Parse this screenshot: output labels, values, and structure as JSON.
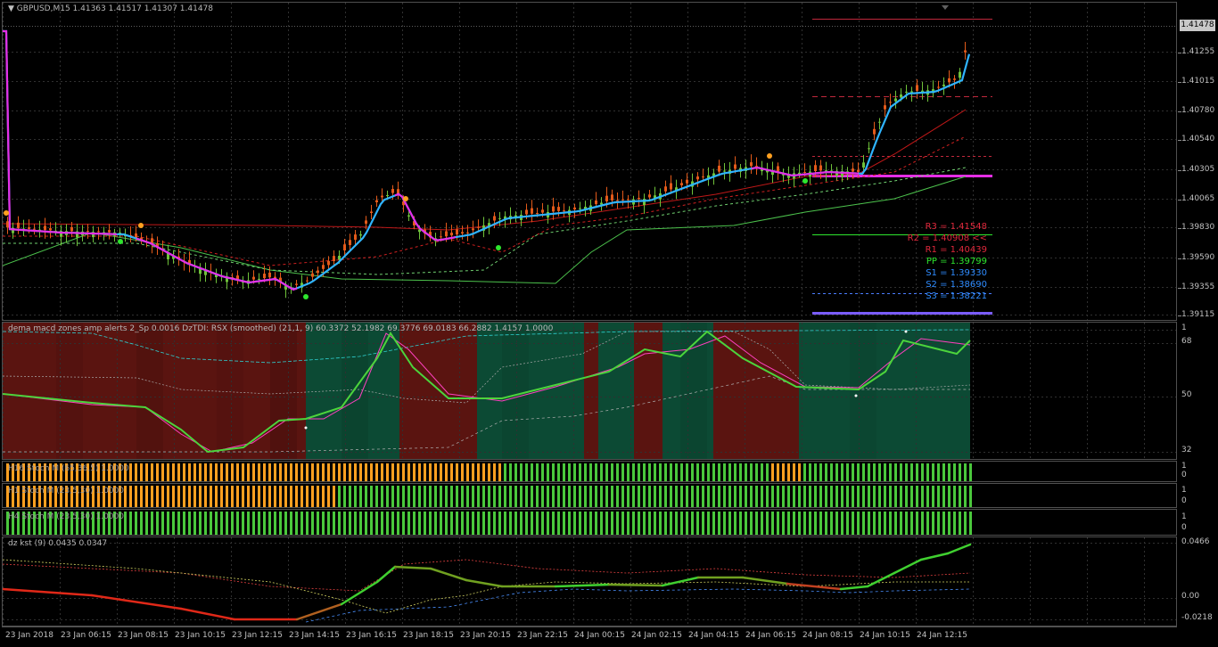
{
  "main": {
    "symbol_title": "GBPUSD,M15  1.41363 1.41517 1.41307 1.41478",
    "current_price": "1.41478",
    "y_labels": [
      "1.41255",
      "1.41015",
      "1.40780",
      "1.40540",
      "1.40305",
      "1.40065",
      "1.39830",
      "1.39590",
      "1.39355",
      "1.39115"
    ],
    "pivots": [
      {
        "text": "R3 = 1.41548",
        "color": "#e0283c"
      },
      {
        "text": "R2 = 1.40908 <<",
        "color": "#e0283c"
      },
      {
        "text": "R1 = 1.40439",
        "color": "#e0283c"
      },
      {
        "text": "PP = 1.39799",
        "color": "#2ee62e"
      },
      {
        "text": "S1 = 1.39330",
        "color": "#2f8cff"
      },
      {
        "text": "S2 = 1.38690",
        "color": "#2f8cff"
      },
      {
        "text": "S3 = 1.38221",
        "color": "#2f8cff"
      }
    ]
  },
  "tdi": {
    "title": "dema macd zones amp alerts 2_Sp 0.0016  DzTDI:  RSX (smoothed) (21,1, 9) 60.3372 52.1982 69.3776 69.0183 66.2882 1.4157 1.0000",
    "y_labels": [
      "1",
      "68",
      "50",
      "32"
    ]
  },
  "strips": [
    {
      "title": "H16 Stoch M (65,36,5) 1.0000",
      "y_labels": [
        "1",
        "0"
      ]
    },
    {
      "title": "H1 Stoch M (23,5,30) 1.0000",
      "y_labels": [
        "1",
        "0"
      ]
    },
    {
      "title": "H4 Stoch M (23,5,30) 1.0000",
      "y_labels": [
        "1",
        "0"
      ]
    }
  ],
  "kst": {
    "title": "dz kst (9) 0.0435 0.0347",
    "y_labels": [
      "0.0466",
      "0.00",
      "-0.0218"
    ]
  },
  "x_labels": [
    "23 Jan 2018",
    "23 Jan 06:15",
    "23 Jan 08:15",
    "23 Jan 10:15",
    "23 Jan 12:15",
    "23 Jan 14:15",
    "23 Jan 16:15",
    "23 Jan 18:15",
    "23 Jan 20:15",
    "23 Jan 22:15",
    "24 Jan 00:15",
    "24 Jan 02:15",
    "24 Jan 04:15",
    "24 Jan 06:15",
    "24 Jan 08:15",
    "24 Jan 10:15",
    "24 Jan 12:15"
  ],
  "colors": {
    "bull": "#6fc23a",
    "bear": "#e35a1a",
    "fast_ma": "#2fb4ff",
    "fast_ma_alt": "#e62ee6",
    "grid": "#303030",
    "zone_red": "#5a1410",
    "zone_green": "#0c4a34"
  }
}
